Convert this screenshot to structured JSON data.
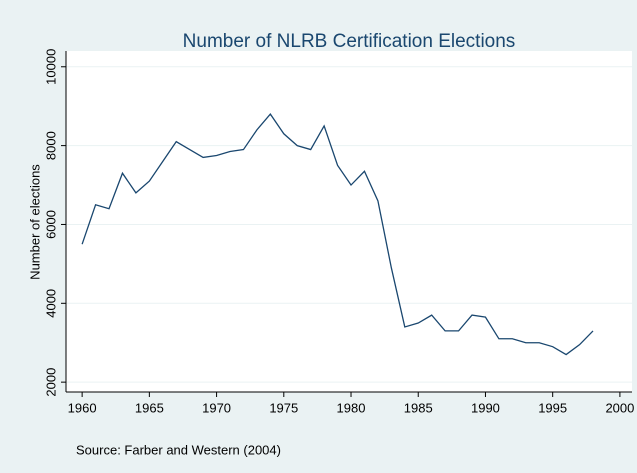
{
  "chart_data": {
    "type": "line",
    "title": "Number of NLRB Certification Elections",
    "y_label": "Number of elections",
    "source": "Source: Farber and Western (2004)",
    "x": [
      1960,
      1961,
      1962,
      1963,
      1964,
      1965,
      1966,
      1967,
      1968,
      1969,
      1970,
      1971,
      1972,
      1973,
      1974,
      1975,
      1976,
      1977,
      1978,
      1979,
      1980,
      1981,
      1982,
      1983,
      1984,
      1985,
      1986,
      1987,
      1988,
      1989,
      1990,
      1991,
      1992,
      1993,
      1994,
      1995,
      1996,
      1997,
      1998
    ],
    "series": [
      {
        "name": "Number of elections",
        "color": "#1a476f",
        "values": [
          5500,
          6500,
          6400,
          7300,
          6800,
          7100,
          7600,
          8100,
          7900,
          7700,
          7750,
          7850,
          7900,
          8400,
          8800,
          8300,
          8000,
          7900,
          8500,
          7500,
          7000,
          7350,
          6600,
          4900,
          3400,
          3500,
          3700,
          3300,
          3300,
          3700,
          3650,
          3100,
          3100,
          3000,
          3000,
          2900,
          2700,
          2950,
          3300
        ]
      }
    ],
    "xlim": [
      1958.8,
      2000.9
    ],
    "xticks": [
      1960,
      1965,
      1970,
      1975,
      1980,
      1985,
      1990,
      1995,
      2000
    ],
    "ylim": [
      1750,
      10400
    ],
    "yticks": [
      2000,
      4000,
      6000,
      8000,
      10000
    ],
    "grid": true
  }
}
